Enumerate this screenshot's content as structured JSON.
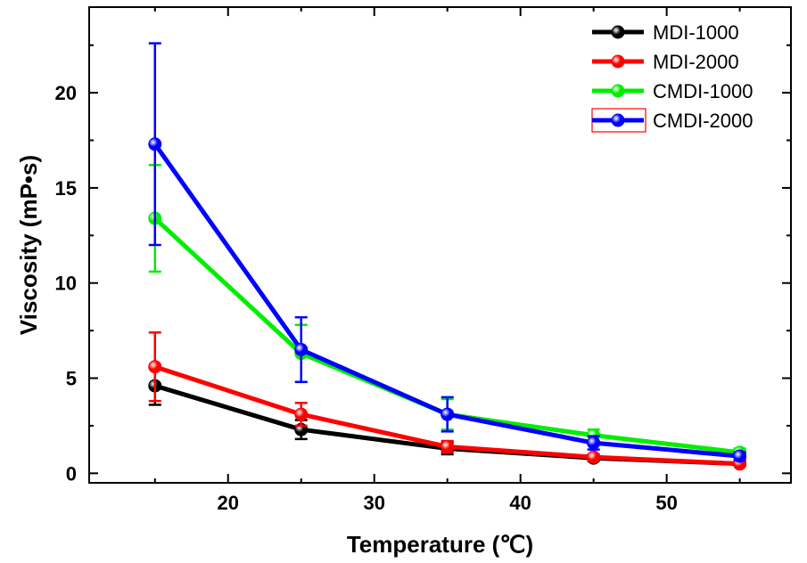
{
  "chart_data": {
    "type": "line",
    "xlabel": "Temperature (℃)",
    "ylabel": "Viscosity (mP•s)",
    "xlim": [
      10.5,
      58.5
    ],
    "ylim": [
      -0.5,
      24.5
    ],
    "xticks": [
      20,
      30,
      40,
      50
    ],
    "yticks": [
      0,
      5,
      10,
      15,
      20
    ],
    "x": [
      15,
      25,
      35,
      45,
      55
    ],
    "grid": false,
    "legend_position": "top-right",
    "series": [
      {
        "name": "MDI-1000",
        "color": "#000000",
        "values": [
          4.6,
          2.3,
          1.3,
          0.8,
          0.5
        ],
        "errors": [
          1.0,
          0.5,
          0.3,
          0.15,
          0.1
        ]
      },
      {
        "name": "MDI-2000",
        "color": "#ff0000",
        "values": [
          5.6,
          3.1,
          1.4,
          0.85,
          0.5
        ],
        "errors": [
          1.8,
          0.6,
          0.3,
          0.15,
          0.1
        ]
      },
      {
        "name": "CMDI-1000",
        "color": "#00ee00",
        "values": [
          13.4,
          6.3,
          3.1,
          2.0,
          1.1
        ],
        "errors": [
          2.8,
          1.5,
          0.8,
          0.3,
          0.2
        ]
      },
      {
        "name": "CMDI-2000",
        "color": "#0000ff",
        "values": [
          17.3,
          6.5,
          3.1,
          1.6,
          0.9
        ],
        "errors": [
          5.3,
          1.7,
          0.9,
          0.35,
          0.2
        ]
      }
    ]
  }
}
